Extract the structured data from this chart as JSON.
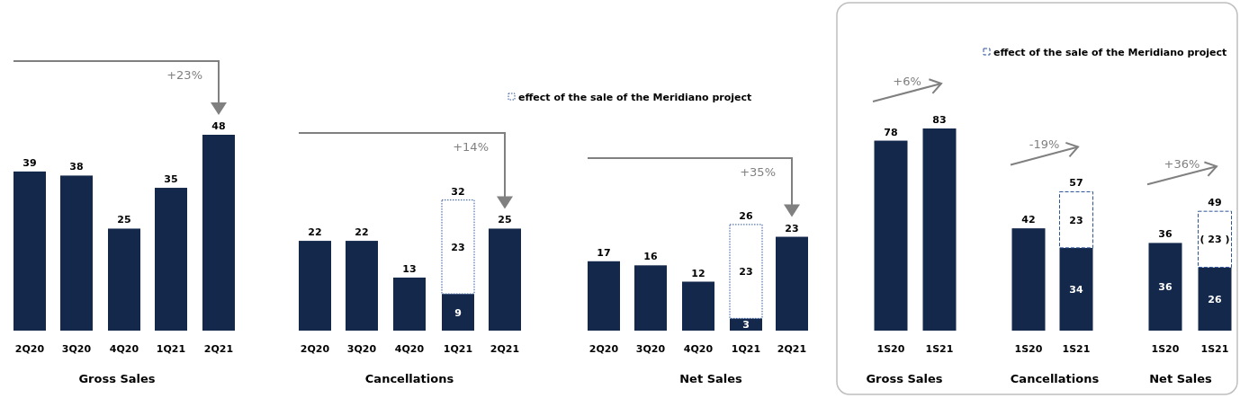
{
  "chart_data": [
    {
      "type": "bar",
      "xlabel": "Gross Sales",
      "categories": [
        "2Q20",
        "3Q20",
        "4Q20",
        "1Q21",
        "2Q21"
      ],
      "values": [
        39,
        38,
        25,
        35,
        48
      ],
      "color": "#14284b",
      "data_labels": true,
      "annotations": [
        "+23%"
      ]
    },
    {
      "type": "bar",
      "xlabel": "Cancellations",
      "categories": [
        "2Q20",
        "3Q20",
        "4Q20",
        "1Q21",
        "2Q21"
      ],
      "stacked": true,
      "series": [
        {
          "color": "#14284b",
          "values": [
            22,
            22,
            13,
            9,
            25
          ],
          "value_labels": [
            null,
            null,
            null,
            "9",
            null
          ]
        },
        {
          "color": "#ffffff",
          "line_style": "dotted",
          "values": [
            null,
            null,
            null,
            23,
            null
          ],
          "value_labels": [
            null,
            null,
            null,
            "23",
            null
          ]
        }
      ],
      "totals": [
        "22",
        "22",
        "13",
        "32",
        "25"
      ],
      "annotations": [
        "+14%"
      ]
    },
    {
      "type": "bar",
      "xlabel": "Net Sales",
      "categories": [
        "2Q20",
        "3Q20",
        "4Q20",
        "1Q21",
        "2Q21"
      ],
      "stacked": true,
      "legend": "top left",
      "series": [
        {
          "color": "#14284b",
          "values": [
            17,
            16,
            12,
            3,
            23
          ],
          "value_labels": [
            null,
            null,
            null,
            "3",
            null
          ]
        },
        {
          "name": "effect of the sale of the Meridiano project",
          "color": "#ffffff",
          "line_style": "dotted",
          "values": [
            null,
            null,
            null,
            23,
            null
          ],
          "value_labels": [
            null,
            null,
            null,
            "23",
            null
          ]
        }
      ],
      "totals": [
        "17",
        "16",
        "12",
        "26",
        "23"
      ],
      "annotations": [
        "+35%"
      ]
    },
    {
      "type": "bar",
      "xlabel": "Gross Sales",
      "categories": [
        "1S20",
        "1S21"
      ],
      "values": [
        78,
        83
      ],
      "color": "#14284b",
      "data_labels": true,
      "annotations": [
        "+6%"
      ]
    },
    {
      "type": "bar",
      "xlabel": "Cancellations",
      "categories": [
        "1S20",
        "1S21"
      ],
      "stacked": true,
      "legend": "top",
      "series": [
        {
          "color": "#14284b",
          "values": [
            42,
            34
          ],
          "value_labels": [
            null,
            "34"
          ]
        },
        {
          "name": "effect of the sale of the Meridiano project",
          "color": "#ffffff",
          "line_style": "dashed",
          "values": [
            null,
            23
          ],
          "value_labels": [
            null,
            "23"
          ]
        }
      ],
      "totals": [
        "42",
        "57"
      ],
      "annotations": [
        "-19%"
      ]
    },
    {
      "type": "bar",
      "xlabel": "Net Sales",
      "categories": [
        "1S20",
        "1S21"
      ],
      "stacked": true,
      "series": [
        {
          "color": "#14284b",
          "values": [
            36,
            26
          ],
          "value_labels": [
            "36",
            "26"
          ]
        },
        {
          "color": "#ffffff",
          "line_style": "dashed",
          "values": [
            null,
            23
          ],
          "value_labels": [
            null,
            "( 23 )"
          ]
        }
      ],
      "totals": [
        "36",
        "49"
      ],
      "annotations": [
        "+36%"
      ]
    }
  ]
}
